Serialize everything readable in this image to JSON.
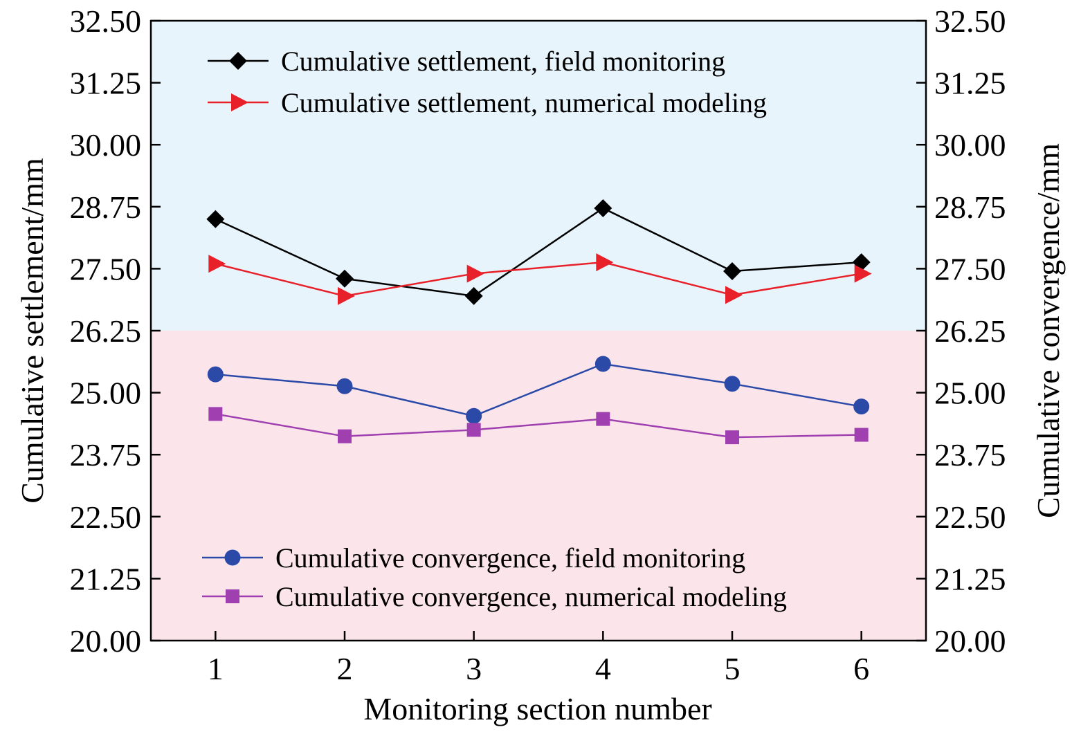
{
  "chart_data": {
    "type": "line",
    "xlabel": "Monitoring section number",
    "ylabel": "Cumulative settlement/mm",
    "ylabel_right": "Cumulative convergence/mm",
    "x": [
      1,
      2,
      3,
      4,
      5,
      6
    ],
    "xlim": [
      0.5,
      6.5
    ],
    "ylim": [
      20.0,
      32.5
    ],
    "yticks": [
      "20.00",
      "21.25",
      "22.50",
      "23.75",
      "25.00",
      "26.25",
      "27.50",
      "28.75",
      "30.00",
      "31.25",
      "32.50"
    ],
    "background_bands": [
      {
        "from": 26.25,
        "to": 32.5,
        "color": "#e8f4fb"
      },
      {
        "from": 20.0,
        "to": 26.25,
        "color": "#fbe4ea"
      }
    ],
    "grid": false,
    "series": [
      {
        "name": "Cumulative settlement, field monitoring",
        "marker": "diamond",
        "color": "#000000",
        "values": [
          28.5,
          27.3,
          26.95,
          28.72,
          27.45,
          27.63
        ]
      },
      {
        "name": "Cumulative settlement, numerical modeling",
        "marker": "triangle-right",
        "color": "#e8202a",
        "values": [
          27.6,
          26.95,
          27.4,
          27.63,
          26.97,
          27.4
        ]
      },
      {
        "name": "Cumulative convergence, field monitoring",
        "marker": "circle",
        "color": "#2b4aa8",
        "values": [
          25.37,
          25.13,
          24.53,
          25.58,
          25.18,
          24.72
        ]
      },
      {
        "name": "Cumulative convergence, numerical modeling",
        "marker": "square",
        "color": "#a040b0",
        "values": [
          24.57,
          24.12,
          24.25,
          24.47,
          24.1,
          24.15
        ]
      }
    ],
    "legend_position": [
      "top-left",
      "bottom-left"
    ]
  }
}
